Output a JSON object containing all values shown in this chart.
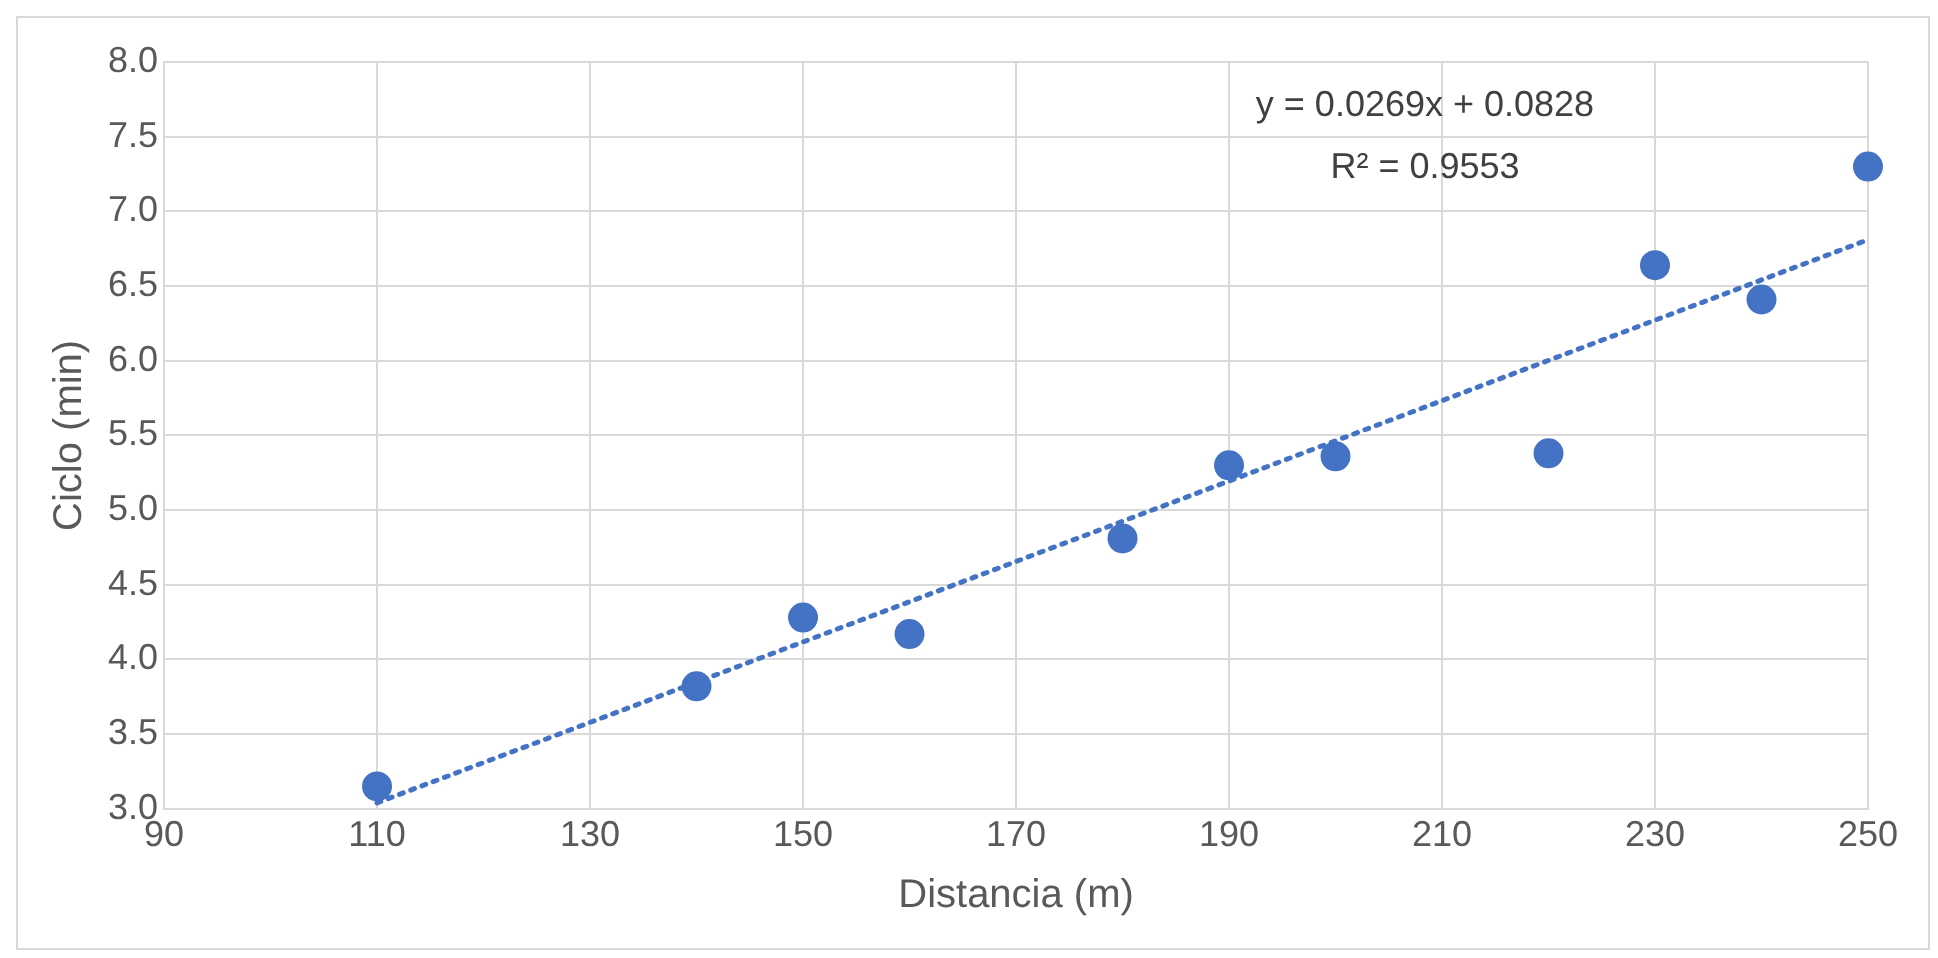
{
  "chart_data": {
    "type": "scatter",
    "xlabel": "Distancia (m)",
    "ylabel": "Ciclo (min)",
    "xlim": [
      90,
      250
    ],
    "xticks": [
      90,
      110,
      130,
      150,
      170,
      190,
      210,
      230,
      250
    ],
    "ylim": [
      3.0,
      8.0
    ],
    "yticks": [
      {
        "value": 3,
        "label": "3.0"
      },
      {
        "value": 3.5,
        "label": "3.5"
      },
      {
        "value": 4,
        "label": "4.0"
      },
      {
        "value": 4.5,
        "label": "4.5"
      },
      {
        "value": 5,
        "label": "5.0"
      },
      {
        "value": 5.5,
        "label": "5.5"
      },
      {
        "value": 6,
        "label": "6.0"
      },
      {
        "value": 6.5,
        "label": "6.5"
      },
      {
        "value": 7,
        "label": "7.0"
      },
      {
        "value": 7.5,
        "label": "7.5"
      },
      {
        "value": 8,
        "label": "8.0"
      }
    ],
    "grid": true,
    "legend": false,
    "marker": "circle",
    "series": [
      {
        "color": "#4472c4",
        "x": [
          110,
          140,
          150,
          160,
          180,
          190,
          200,
          220,
          230,
          240,
          250
        ],
        "values": [
          3.15,
          3.82,
          4.28,
          4.17,
          4.81,
          5.3,
          5.36,
          5.38,
          6.64,
          6.41,
          7.3
        ]
      },
      {
        "type": "line",
        "color": "#4472c4",
        "line_style": "dotted",
        "marker": "none",
        "x": [
          110,
          250
        ],
        "values": [
          3.04,
          6.81
        ]
      }
    ],
    "annotations": [
      "y = 0.0269x + 0.0828",
      "R² = 0.9553"
    ]
  }
}
